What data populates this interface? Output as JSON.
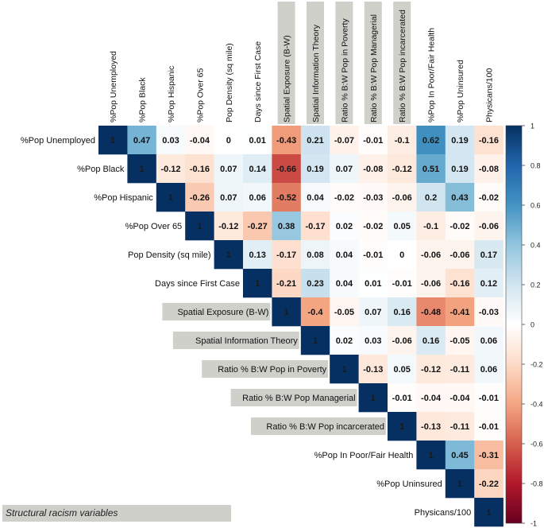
{
  "chart_data": {
    "type": "heatmap",
    "title": "",
    "variables": [
      "%Pop Unemployed",
      "%Pop Black",
      "%Pop Hispanic",
      "%Pop Over 65",
      "Pop Density (sq mile)",
      "Days since First Case",
      "Spatial Exposure (B-W)",
      "Spatial Information Theory",
      "Ratio % B:W Pop in Poverty",
      "Ratio % B:W Pop Managerial",
      "Ratio % B:W Pop incarcerated",
      "%Pop In Poor/Fair Health",
      "%Pop Uninsured",
      "Physicans/100"
    ],
    "highlighted_variables": [
      6,
      7,
      8,
      9,
      10
    ],
    "matrix": [
      [
        1,
        0.47,
        0.03,
        -0.04,
        0,
        0.01,
        -0.43,
        0.21,
        -0.07,
        -0.01,
        -0.1,
        0.62,
        0.19,
        -0.16
      ],
      [
        null,
        1,
        -0.12,
        -0.16,
        0.07,
        0.14,
        -0.66,
        0.19,
        0.07,
        -0.08,
        -0.12,
        0.51,
        0.19,
        -0.08
      ],
      [
        null,
        null,
        1,
        -0.26,
        0.07,
        0.06,
        -0.52,
        0.04,
        -0.02,
        -0.03,
        -0.06,
        0.2,
        0.43,
        -0.02
      ],
      [
        null,
        null,
        null,
        1,
        -0.12,
        -0.27,
        0.38,
        -0.17,
        0.02,
        -0.02,
        0.05,
        -0.1,
        -0.02,
        -0.06
      ],
      [
        null,
        null,
        null,
        null,
        1,
        0.13,
        -0.17,
        0.08,
        0.04,
        -0.01,
        0,
        -0.06,
        -0.06,
        0.17
      ],
      [
        null,
        null,
        null,
        null,
        null,
        1,
        -0.21,
        0.23,
        0.04,
        0.01,
        -0.01,
        -0.06,
        -0.16,
        0.12
      ],
      [
        null,
        null,
        null,
        null,
        null,
        null,
        1,
        -0.4,
        -0.05,
        0.07,
        0.16,
        -0.48,
        -0.41,
        -0.03
      ],
      [
        null,
        null,
        null,
        null,
        null,
        null,
        null,
        1,
        0.02,
        0.03,
        -0.06,
        0.16,
        -0.05,
        0.06
      ],
      [
        null,
        null,
        null,
        null,
        null,
        null,
        null,
        null,
        1,
        -0.13,
        0.05,
        -0.12,
        -0.11,
        0.06
      ],
      [
        null,
        null,
        null,
        null,
        null,
        null,
        null,
        null,
        null,
        1,
        -0.01,
        -0.04,
        -0.04,
        -0.01
      ],
      [
        null,
        null,
        null,
        null,
        null,
        null,
        null,
        null,
        null,
        null,
        1,
        -0.13,
        -0.11,
        -0.01
      ],
      [
        null,
        null,
        null,
        null,
        null,
        null,
        null,
        null,
        null,
        null,
        null,
        1,
        0.45,
        -0.31
      ],
      [
        null,
        null,
        null,
        null,
        null,
        null,
        null,
        null,
        null,
        null,
        null,
        null,
        1,
        -0.22
      ],
      [
        null,
        null,
        null,
        null,
        null,
        null,
        null,
        null,
        null,
        null,
        null,
        null,
        null,
        1
      ]
    ],
    "colorbar": {
      "range": [
        -1,
        1
      ],
      "ticks": [
        "1",
        "0.8",
        "0.6",
        "0.4",
        "0.2",
        "0",
        "-0.2",
        "-0.4",
        "-0.6",
        "-0.8",
        "-1"
      ],
      "colors": {
        "negative": "#67001f",
        "neutral": "#ffffff",
        "positive": "#053061"
      }
    }
  },
  "legend_note": "Structural racism variables",
  "colors": {
    "highlight_box": "#d0d0cb"
  }
}
